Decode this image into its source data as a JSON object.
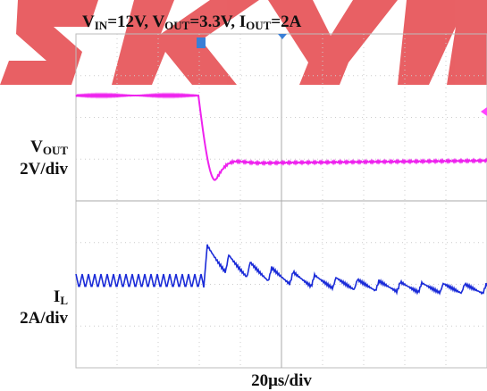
{
  "header": {
    "title_parts": [
      "V",
      "IN",
      "=12V,   V",
      "OUT",
      "=3.3V,   I",
      "OUT",
      "=2A"
    ]
  },
  "channels": [
    {
      "name_parts": [
        "V",
        "OUT"
      ],
      "scale": "2V/div"
    },
    {
      "name_parts": [
        "I",
        "L"
      ],
      "scale": "2A/div"
    }
  ],
  "timebase": "20μs/div"
}
